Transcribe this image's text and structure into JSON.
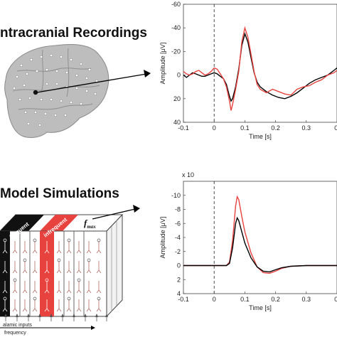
{
  "top_section": {
    "title": "ntracranial Recordings"
  },
  "bottom_section": {
    "title": "Model Simulations",
    "labels": {
      "frequent": "frequent",
      "infrequent": "infrequent",
      "f_max": "f",
      "f_max_sub": "max",
      "inputs": "alamic inputs",
      "frequency": "frequency"
    }
  },
  "colors": {
    "series_red": "#e8423f",
    "series_black": "#000000",
    "brain_fill": "#bdbdbd",
    "column_red": "#e8423f"
  },
  "chart_data": [
    {
      "type": "line",
      "xlabel": "Time [s]",
      "ylabel": "Amplitude [μV]",
      "xlim": [
        -0.1,
        0.4
      ],
      "ylim": [
        -60,
        40
      ],
      "y_inverted": true,
      "x_ticks": [
        "-0.1",
        "0",
        "0.1",
        "0.2",
        "0.3",
        "0."
      ],
      "y_ticks": [
        "-60",
        "-40",
        "-20",
        "0",
        "20",
        "40"
      ],
      "vline_x": 0,
      "series": [
        {
          "color": "#000000",
          "x": [
            -0.1,
            -0.09,
            -0.08,
            -0.07,
            -0.06,
            -0.05,
            -0.04,
            -0.03,
            -0.02,
            -0.01,
            0.0,
            0.01,
            0.02,
            0.03,
            0.04,
            0.05,
            0.055,
            0.06,
            0.07,
            0.08,
            0.09,
            0.1,
            0.11,
            0.12,
            0.13,
            0.14,
            0.15,
            0.17,
            0.19,
            0.21,
            0.23,
            0.25,
            0.27,
            0.29,
            0.31,
            0.33,
            0.35,
            0.37,
            0.39,
            0.4
          ],
          "y": [
            0,
            2,
            0,
            -2,
            -1,
            0,
            1,
            1,
            0,
            -1,
            -2,
            -1,
            1,
            3,
            8,
            18,
            22,
            20,
            10,
            -5,
            -25,
            -35,
            -28,
            -15,
            -2,
            6,
            10,
            14,
            17,
            19,
            20,
            18,
            15,
            11,
            7,
            4,
            2,
            0,
            -4,
            -6
          ]
        },
        {
          "color": "#e8423f",
          "x": [
            -0.1,
            -0.09,
            -0.08,
            -0.07,
            -0.06,
            -0.05,
            -0.04,
            -0.03,
            -0.02,
            -0.01,
            0.0,
            0.01,
            0.02,
            0.03,
            0.04,
            0.05,
            0.055,
            0.06,
            0.07,
            0.08,
            0.09,
            0.1,
            0.11,
            0.12,
            0.13,
            0.14,
            0.15,
            0.17,
            0.19,
            0.21,
            0.23,
            0.25,
            0.27,
            0.29,
            0.31,
            0.33,
            0.35,
            0.37,
            0.39,
            0.4
          ],
          "y": [
            -3,
            -1,
            0,
            -1,
            -3,
            -4,
            -2,
            0,
            -1,
            -3,
            -6,
            -5,
            -1,
            3,
            10,
            22,
            30,
            25,
            12,
            -3,
            -28,
            -40,
            -32,
            -18,
            -3,
            8,
            12,
            15,
            12,
            14,
            16,
            17,
            12,
            10,
            9,
            6,
            4,
            0,
            -2,
            -4
          ]
        }
      ]
    },
    {
      "type": "line",
      "xlabel": "Time [s]",
      "ylabel": "Amplitude [μV]",
      "multiplier": "x 10",
      "xlim": [
        -0.1,
        0.4
      ],
      "ylim": [
        -12,
        4
      ],
      "y_inverted": true,
      "x_ticks": [
        "-0.1",
        "0",
        "0.1",
        "0.2",
        "0.3",
        "0."
      ],
      "y_ticks": [
        "-10",
        "-8",
        "-6",
        "-4",
        "-2",
        "0",
        "2",
        "4"
      ],
      "vline_x": 0,
      "series": [
        {
          "color": "#e8423f",
          "x": [
            -0.1,
            -0.05,
            0.0,
            0.04,
            0.05,
            0.06,
            0.07,
            0.075,
            0.08,
            0.09,
            0.1,
            0.12,
            0.14,
            0.16,
            0.18,
            0.2,
            0.22,
            0.25,
            0.3,
            0.35,
            0.4
          ],
          "y": [
            0,
            0,
            0,
            0,
            -0.5,
            -3.5,
            -8.5,
            -9.8,
            -9.4,
            -7,
            -4.8,
            -1.8,
            0.2,
            1.0,
            1.1,
            0.8,
            0.4,
            0.1,
            0,
            0,
            0
          ]
        },
        {
          "color": "#000000",
          "x": [
            -0.1,
            -0.05,
            0.0,
            0.04,
            0.05,
            0.06,
            0.07,
            0.075,
            0.08,
            0.09,
            0.1,
            0.12,
            0.14,
            0.16,
            0.18,
            0.2,
            0.22,
            0.25,
            0.3,
            0.35,
            0.4
          ],
          "y": [
            0,
            0,
            0,
            0,
            -0.3,
            -2.5,
            -6.0,
            -6.8,
            -6.4,
            -4.8,
            -3.2,
            -1.1,
            0.2,
            0.8,
            0.9,
            0.6,
            0.3,
            0.1,
            0,
            0,
            0
          ]
        }
      ]
    }
  ]
}
